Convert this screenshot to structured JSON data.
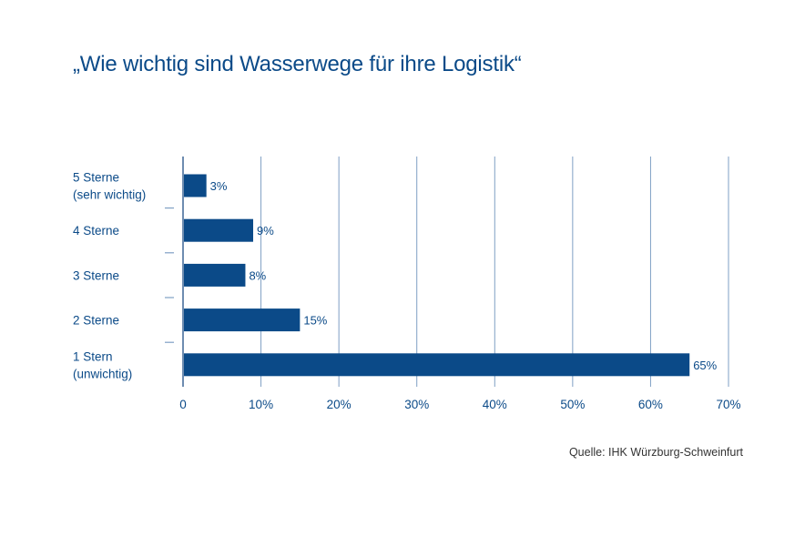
{
  "title": "„Wie wichtig sind Wasserwege für ihre Logistik“",
  "source": "Quelle: IHK Würzburg-Schweinfurt",
  "colors": {
    "bar": "#0b4a88",
    "text": "#0b4a88",
    "grid": "#7f9fc4",
    "source_text": "#333333"
  },
  "chart_data": {
    "type": "bar",
    "orientation": "horizontal",
    "categories": [
      [
        "5 Sterne",
        "(sehr wichtig)"
      ],
      [
        "4 Sterne"
      ],
      [
        "3 Sterne"
      ],
      [
        "2 Sterne"
      ],
      [
        "1 Stern",
        "(unwichtig)"
      ]
    ],
    "values": [
      3,
      9,
      8,
      15,
      65
    ],
    "data_labels": [
      "3%",
      "9%",
      "8%",
      "15%",
      "65%"
    ],
    "xlim": [
      0,
      70
    ],
    "xticks": [
      0,
      10,
      20,
      30,
      40,
      50,
      60,
      70
    ],
    "xtick_labels": [
      "0",
      "10%",
      "20%",
      "30%",
      "40%",
      "50%",
      "60%",
      "70%"
    ],
    "grid": true,
    "xlabel": "",
    "ylabel": ""
  }
}
